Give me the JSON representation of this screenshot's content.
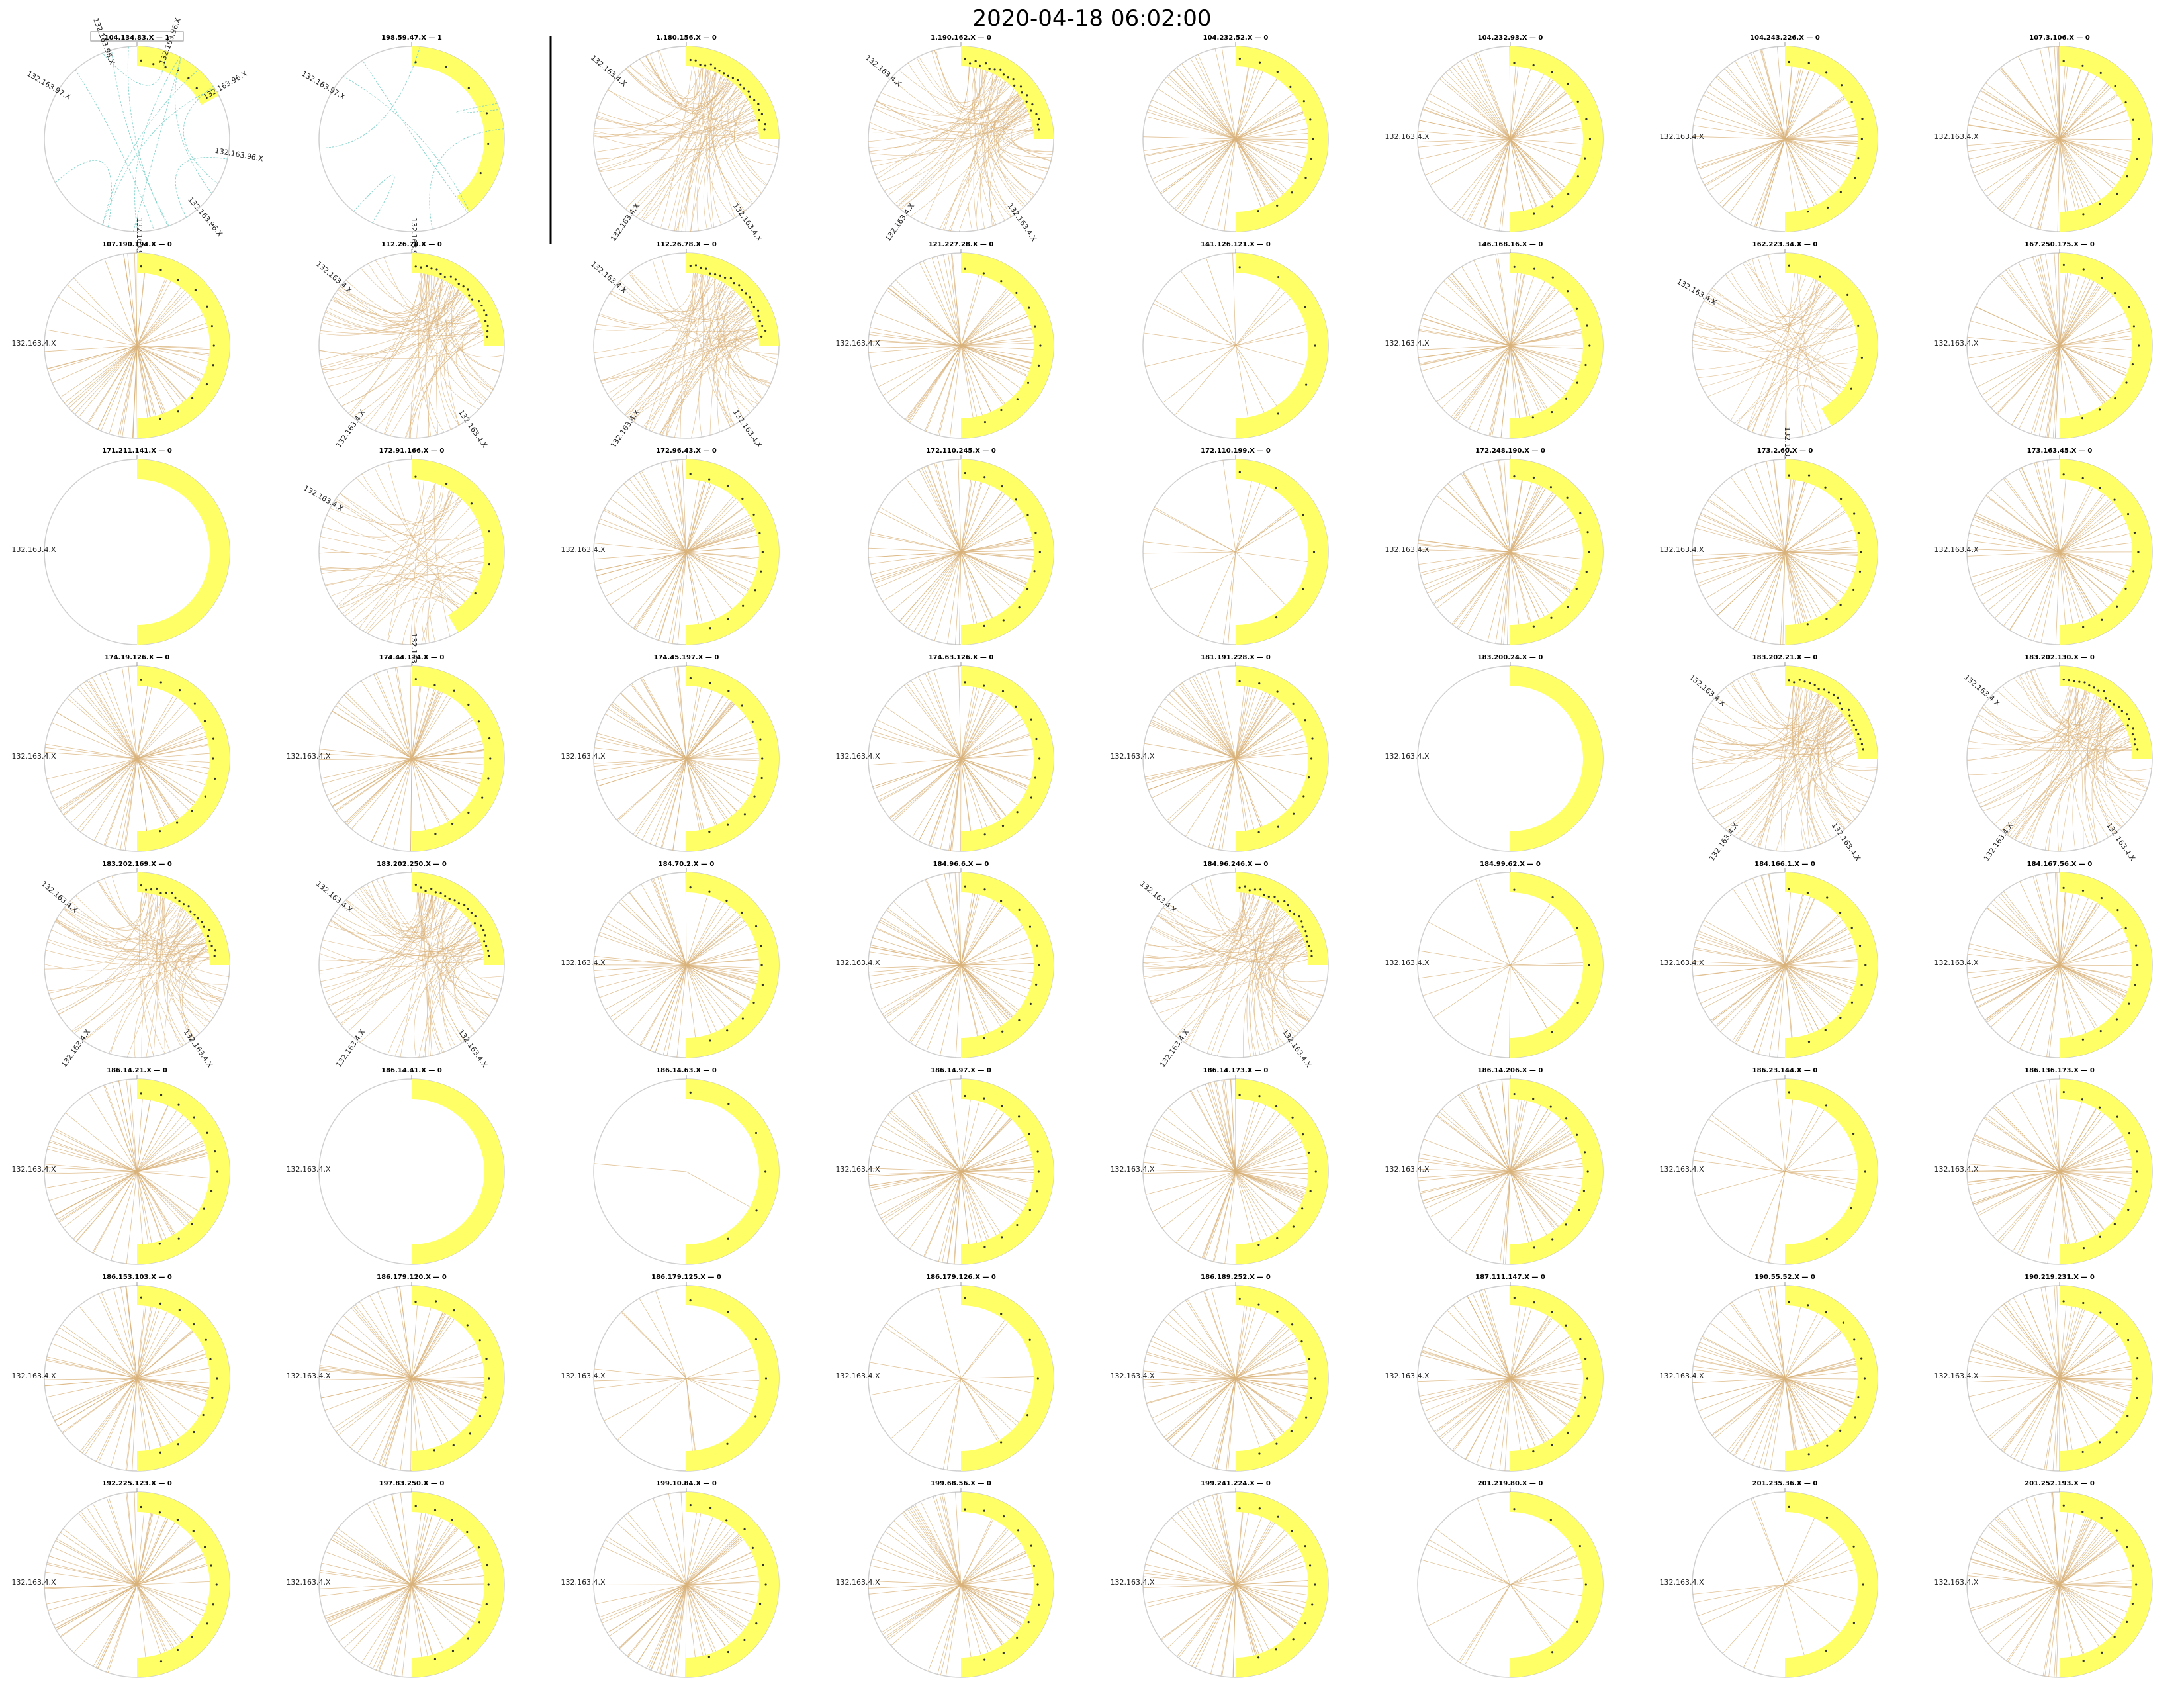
{
  "title": "2020-04-18 06:02:00",
  "colors": {
    "arc": "#ffff66",
    "ring": "#cfcfcf",
    "edge_main": "#d9b27a",
    "edge_first": "#7ccfc8",
    "node": "#333333",
    "divider": "#000000"
  },
  "chart_data": {
    "type": "chord-grid",
    "rows": 8,
    "cols": 8,
    "panels": [
      {
        "title": "104.134.83.X — 1",
        "style": "first",
        "labels": [
          "132.163.97.X",
          "132.163.96.X",
          "132.163.96.X",
          "132.163.96.X",
          "132.163.96.X",
          "132.163.96.X",
          "132.163.97.X"
        ],
        "legend_box": true
      },
      {
        "title": "198.59.47.X — 1",
        "style": "second",
        "labels": [
          "132.163.97.X",
          "132.163.96.X"
        ]
      },
      {
        "title": "1.180.156.X — 0",
        "style": "dense",
        "labels": [
          "132.163.4.X",
          "132.163.4.X",
          "132.163.4.X"
        ]
      },
      {
        "title": "1.190.162.X — 0",
        "style": "dense",
        "labels": [
          "132.163.4.X",
          "132.163.4.X",
          "132.163.4.X"
        ]
      },
      {
        "title": "104.232.52.X — 0",
        "style": "radial",
        "labels": []
      },
      {
        "title": "104.232.93.X — 0",
        "style": "radial",
        "labels": [
          "132.163.4.X"
        ]
      },
      {
        "title": "104.243.226.X — 0",
        "style": "radial",
        "labels": [
          "132.163.4.X"
        ]
      },
      {
        "title": "107.3.106.X — 0",
        "style": "radial",
        "labels": [
          "132.163.4.X"
        ]
      },
      {
        "title": "107.190.194.X — 0",
        "style": "radial",
        "labels": [
          "132.163.4.X"
        ]
      },
      {
        "title": "112.26.78.X — 0",
        "style": "dense",
        "labels": [
          "132.163.4.X",
          "132.163.4.X",
          "132.163.4.X"
        ]
      },
      {
        "title": "112.26.78.X — 0",
        "style": "dense",
        "labels": [
          "132.163.4.X",
          "132.163.4.X",
          "132.163.4.X"
        ]
      },
      {
        "title": "121.227.28.X — 0",
        "style": "radial",
        "labels": [
          "132.163.4.X"
        ]
      },
      {
        "title": "141.126.121.X — 0",
        "style": "sparse",
        "labels": []
      },
      {
        "title": "146.168.16.X — 0",
        "style": "radial",
        "labels": [
          "132.163.4.X"
        ]
      },
      {
        "title": "162.223.34.X — 0",
        "style": "semi",
        "labels": [
          "132.163.4.X",
          "132.163.4.X"
        ]
      },
      {
        "title": "167.250.175.X — 0",
        "style": "radial",
        "labels": [
          "132.163.4.X"
        ]
      },
      {
        "title": "171.211.141.X — 0",
        "style": "empty",
        "labels": [
          "132.163.4.X"
        ]
      },
      {
        "title": "172.91.166.X — 0",
        "style": "semi",
        "labels": [
          "132.163.4.X",
          "132.163.4.X"
        ]
      },
      {
        "title": "172.96.43.X — 0",
        "style": "radial",
        "labels": [
          "132.163.4.X"
        ]
      },
      {
        "title": "172.110.245.X — 0",
        "style": "radial",
        "labels": []
      },
      {
        "title": "172.110.199.X — 0",
        "style": "sparse",
        "labels": []
      },
      {
        "title": "172.248.190.X — 0",
        "style": "radial",
        "labels": [
          "132.163.4.X"
        ]
      },
      {
        "title": "173.2.60.X — 0",
        "style": "radial",
        "labels": [
          "132.163.4.X"
        ]
      },
      {
        "title": "173.163.45.X — 0",
        "style": "radial",
        "labels": [
          "132.163.4.X"
        ]
      },
      {
        "title": "174.19.126.X — 0",
        "style": "radial",
        "labels": [
          "132.163.4.X"
        ]
      },
      {
        "title": "174.44.114.X — 0",
        "style": "radial",
        "labels": [
          "132.163.4.X"
        ]
      },
      {
        "title": "174.45.197.X — 0",
        "style": "radial",
        "labels": [
          "132.163.4.X"
        ]
      },
      {
        "title": "174.63.126.X — 0",
        "style": "radial",
        "labels": [
          "132.163.4.X"
        ]
      },
      {
        "title": "181.191.228.X — 0",
        "style": "radial",
        "labels": [
          "132.163.4.X"
        ]
      },
      {
        "title": "183.200.24.X — 0",
        "style": "empty",
        "labels": [
          "132.163.4.X"
        ]
      },
      {
        "title": "183.202.21.X — 0",
        "style": "dense",
        "labels": [
          "132.163.4.X",
          "132.163.4.X",
          "132.163.4.X"
        ]
      },
      {
        "title": "183.202.130.X — 0",
        "style": "dense",
        "labels": [
          "132.163.4.X",
          "132.163.4.X",
          "132.163.4.X"
        ]
      },
      {
        "title": "183.202.169.X — 0",
        "style": "dense",
        "labels": [
          "132.163.4.X",
          "132.163.4.X",
          "132.163.4.X"
        ]
      },
      {
        "title": "183.202.250.X — 0",
        "style": "dense",
        "labels": [
          "132.163.4.X",
          "132.163.4.X",
          "132.163.4.X"
        ]
      },
      {
        "title": "184.70.2.X — 0",
        "style": "radial",
        "labels": [
          "132.163.4.X"
        ]
      },
      {
        "title": "184.96.6.X — 0",
        "style": "radial",
        "labels": [
          "132.163.4.X"
        ]
      },
      {
        "title": "184.96.246.X — 0",
        "style": "dense",
        "labels": [
          "132.163.4.X",
          "132.163.4.X",
          "132.163.4.X"
        ]
      },
      {
        "title": "184.99.62.X — 0",
        "style": "sparse",
        "labels": [
          "132.163.4.X"
        ]
      },
      {
        "title": "184.166.1.X — 0",
        "style": "radial",
        "labels": [
          "132.163.4.X"
        ]
      },
      {
        "title": "184.167.56.X — 0",
        "style": "radial",
        "labels": [
          "132.163.4.X"
        ]
      },
      {
        "title": "186.14.21.X — 0",
        "style": "radial",
        "labels": [
          "132.163.4.X"
        ]
      },
      {
        "title": "186.14.41.X — 0",
        "style": "empty",
        "labels": [
          "132.163.4.X"
        ]
      },
      {
        "title": "186.14.63.X — 0",
        "style": "single",
        "labels": []
      },
      {
        "title": "186.14.97.X — 0",
        "style": "radial",
        "labels": [
          "132.163.4.X"
        ]
      },
      {
        "title": "186.14.173.X — 0",
        "style": "radial",
        "labels": [
          "132.163.4.X"
        ]
      },
      {
        "title": "186.14.206.X — 0",
        "style": "radial",
        "labels": [
          "132.163.4.X"
        ]
      },
      {
        "title": "186.23.144.X — 0",
        "style": "sparse",
        "labels": [
          "132.163.4.X"
        ]
      },
      {
        "title": "186.136.173.X — 0",
        "style": "radial",
        "labels": [
          "132.163.4.X"
        ]
      },
      {
        "title": "186.153.103.X — 0",
        "style": "radial",
        "labels": [
          "132.163.4.X"
        ]
      },
      {
        "title": "186.179.120.X — 0",
        "style": "radial",
        "labels": [
          "132.163.4.X"
        ]
      },
      {
        "title": "186.179.125.X — 0",
        "style": "sparse",
        "labels": [
          "132.163.4.X"
        ]
      },
      {
        "title": "186.179.126.X — 0",
        "style": "sparse",
        "labels": [
          "132.163.4.X"
        ]
      },
      {
        "title": "186.189.252.X — 0",
        "style": "radial",
        "labels": [
          "132.163.4.X"
        ]
      },
      {
        "title": "187.111.147.X — 0",
        "style": "radial",
        "labels": [
          "132.163.4.X"
        ]
      },
      {
        "title": "190.55.52.X — 0",
        "style": "radial",
        "labels": [
          "132.163.4.X"
        ]
      },
      {
        "title": "190.219.231.X — 0",
        "style": "radial",
        "labels": [
          "132.163.4.X"
        ]
      },
      {
        "title": "192.225.123.X — 0",
        "style": "radial",
        "labels": [
          "132.163.4.X"
        ]
      },
      {
        "title": "197.83.250.X — 0",
        "style": "radial",
        "labels": [
          "132.163.4.X"
        ]
      },
      {
        "title": "199.10.84.X — 0",
        "style": "radial",
        "labels": [
          "132.163.4.X"
        ]
      },
      {
        "title": "199.68.56.X — 0",
        "style": "radial",
        "labels": [
          "132.163.4.X"
        ]
      },
      {
        "title": "199.241.224.X — 0",
        "style": "radial",
        "labels": [
          "132.163.4.X"
        ]
      },
      {
        "title": "201.219.80.X — 0",
        "style": "sparse",
        "labels": []
      },
      {
        "title": "201.235.36.X — 0",
        "style": "sparse",
        "labels": [
          "132.163.4.X"
        ]
      },
      {
        "title": "201.252.193.X — 0",
        "style": "radial",
        "labels": [
          "132.163.4.X"
        ]
      }
    ]
  }
}
